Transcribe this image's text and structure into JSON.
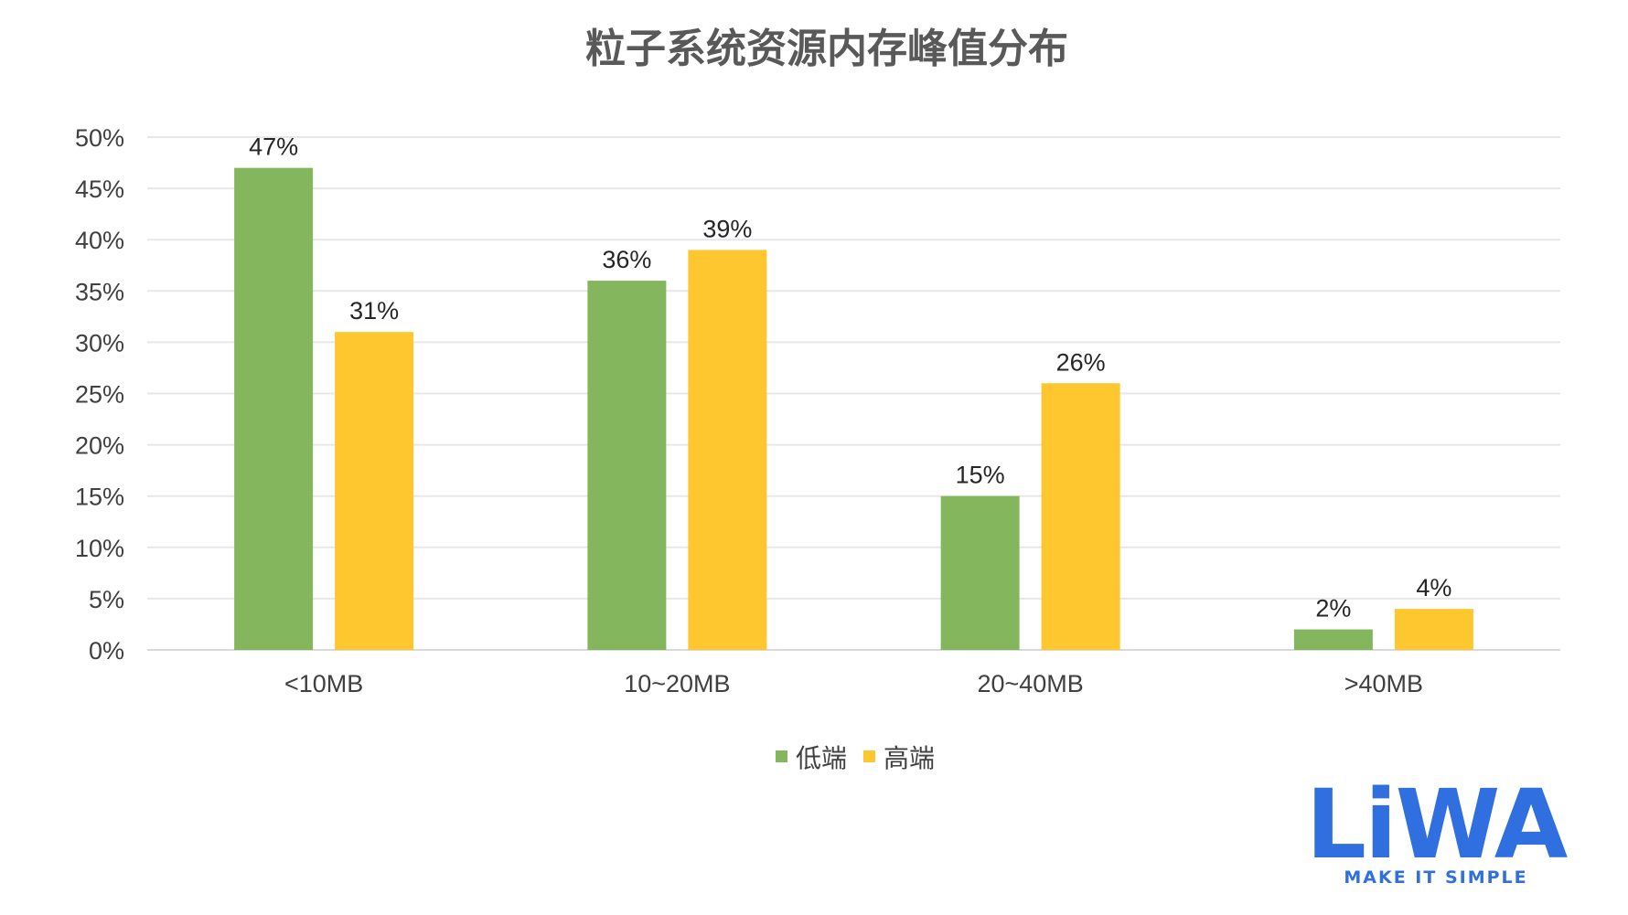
{
  "chart_data": {
    "type": "bar",
    "title": "粒子系统资源内存峰值分布",
    "categories": [
      "<10MB",
      "10~20MB",
      "20~40MB",
      ">40MB"
    ],
    "series": [
      {
        "name": "低端",
        "color": "#84b65d",
        "values": [
          47,
          36,
          15,
          2
        ],
        "labels": [
          "47%",
          "36%",
          "15%",
          "2%"
        ]
      },
      {
        "name": "高端",
        "color": "#fec730",
        "values": [
          31,
          39,
          26,
          4
        ],
        "labels": [
          "31%",
          "39%",
          "26%",
          "4%"
        ]
      }
    ],
    "ylim": [
      0,
      50
    ],
    "yticks": [
      0,
      5,
      10,
      15,
      20,
      25,
      30,
      35,
      40,
      45,
      50
    ],
    "ytick_labels": [
      "0%",
      "5%",
      "10%",
      "15%",
      "20%",
      "25%",
      "30%",
      "35%",
      "40%",
      "45%",
      "50%"
    ],
    "grid": true,
    "legend": "bottom-center"
  },
  "logo": {
    "mark": "LiWA",
    "tagline": "MAKE IT SIMPLE",
    "color": "#2f6fe0"
  }
}
